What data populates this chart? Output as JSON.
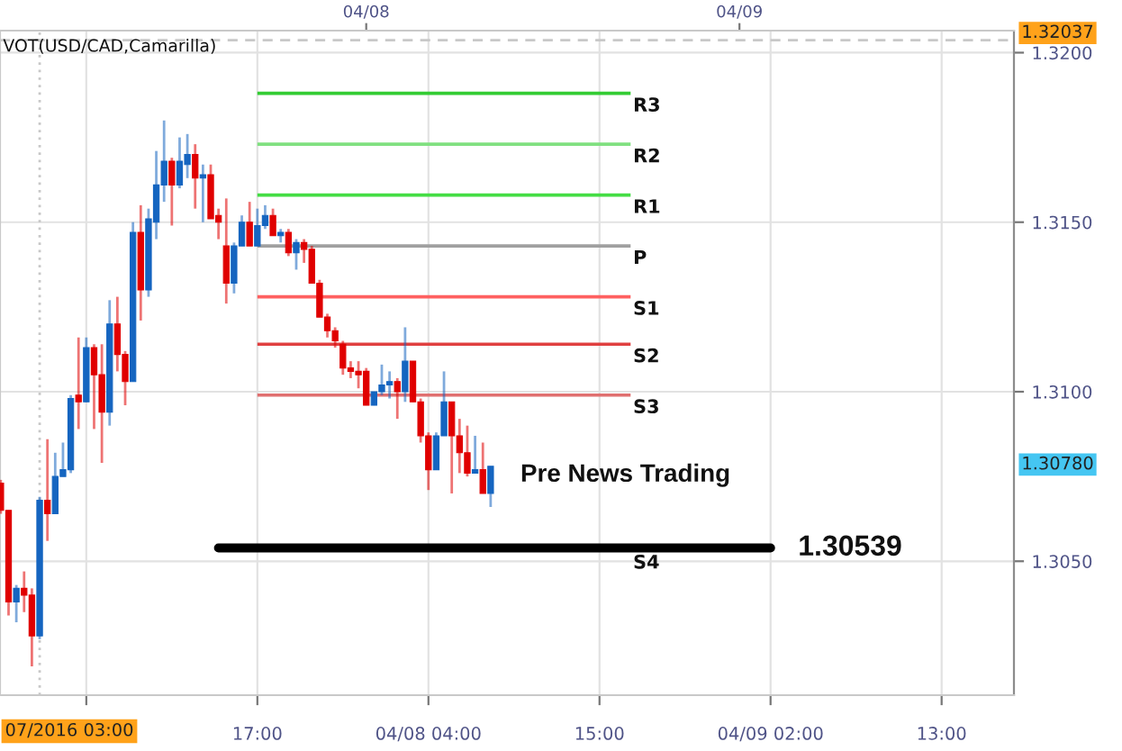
{
  "chart_data": {
    "type": "candlestick",
    "title": "VOT(USD/CAD,Camarilla)",
    "x": [
      "2016-04-07T00:30",
      "2016-04-07T01:00",
      "2016-04-07T01:30",
      "2016-04-07T02:00",
      "2016-04-07T02:30",
      "2016-04-07T03:00",
      "2016-04-07T03:30",
      "2016-04-07T04:00",
      "2016-04-07T04:30",
      "2016-04-07T05:00",
      "2016-04-07T05:30",
      "2016-04-07T06:00",
      "2016-04-07T06:30",
      "2016-04-07T07:00",
      "2016-04-07T07:30",
      "2016-04-07T08:00",
      "2016-04-07T08:30",
      "2016-04-07T09:00",
      "2016-04-07T09:30",
      "2016-04-07T10:00",
      "2016-04-07T10:30",
      "2016-04-07T11:00",
      "2016-04-07T11:30",
      "2016-04-07T12:00",
      "2016-04-07T12:30",
      "2016-04-07T13:00",
      "2016-04-07T13:30",
      "2016-04-07T14:00",
      "2016-04-07T14:30",
      "2016-04-07T15:00",
      "2016-04-07T15:30",
      "2016-04-07T16:00",
      "2016-04-07T16:30",
      "2016-04-07T17:00",
      "2016-04-07T17:30",
      "2016-04-07T18:00",
      "2016-04-07T18:30",
      "2016-04-07T19:00",
      "2016-04-07T19:30",
      "2016-04-07T20:00",
      "2016-04-07T20:30",
      "2016-04-07T21:00",
      "2016-04-07T21:30",
      "2016-04-07T22:00",
      "2016-04-07T22:30",
      "2016-04-07T23:00",
      "2016-04-07T23:30",
      "2016-04-08T00:00",
      "2016-04-08T00:30",
      "2016-04-08T01:00",
      "2016-04-08T01:30",
      "2016-04-08T02:00",
      "2016-04-08T02:30",
      "2016-04-08T03:00",
      "2016-04-08T03:30",
      "2016-04-08T04:00",
      "2016-04-08T04:30",
      "2016-04-08T05:00",
      "2016-04-08T05:30",
      "2016-04-08T06:00",
      "2016-04-08T06:30",
      "2016-04-08T07:00",
      "2016-04-08T07:30",
      "2016-04-08T08:00"
    ],
    "ohlc": [
      [
        1.3073,
        1.3074,
        1.3064,
        1.3065
      ],
      [
        1.3065,
        1.3065,
        1.3034,
        1.3038
      ],
      [
        1.3038,
        1.3043,
        1.3032,
        1.3042
      ],
      [
        1.3042,
        1.3047,
        1.3035,
        1.304
      ],
      [
        1.304,
        1.3042,
        1.3019,
        1.3028
      ],
      [
        1.3028,
        1.3069,
        1.3027,
        1.3068
      ],
      [
        1.3068,
        1.3086,
        1.3056,
        1.3064
      ],
      [
        1.3064,
        1.3082,
        1.3064,
        1.3075
      ],
      [
        1.3075,
        1.3085,
        1.3075,
        1.3077
      ],
      [
        1.3077,
        1.3099,
        1.3076,
        1.3098
      ],
      [
        1.3099,
        1.3116,
        1.3089,
        1.3097
      ],
      [
        1.3097,
        1.3116,
        1.3097,
        1.3113
      ],
      [
        1.3113,
        1.3114,
        1.3089,
        1.3105
      ],
      [
        1.3105,
        1.3114,
        1.3079,
        1.3094
      ],
      [
        1.3094,
        1.3127,
        1.309,
        1.312
      ],
      [
        1.312,
        1.3128,
        1.3106,
        1.3111
      ],
      [
        1.3111,
        1.3112,
        1.3096,
        1.3103
      ],
      [
        1.3103,
        1.315,
        1.3103,
        1.3147
      ],
      [
        1.3147,
        1.3155,
        1.3121,
        1.313
      ],
      [
        1.313,
        1.3154,
        1.3128,
        1.3151
      ],
      [
        1.315,
        1.3171,
        1.3145,
        1.3161
      ],
      [
        1.3161,
        1.318,
        1.3156,
        1.3168
      ],
      [
        1.3168,
        1.3169,
        1.3149,
        1.3161
      ],
      [
        1.3161,
        1.3175,
        1.316,
        1.3168
      ],
      [
        1.3167,
        1.3176,
        1.3163,
        1.317
      ],
      [
        1.317,
        1.3173,
        1.3154,
        1.3163
      ],
      [
        1.3163,
        1.3167,
        1.315,
        1.3164
      ],
      [
        1.3164,
        1.3167,
        1.3151,
        1.3151
      ],
      [
        1.3152,
        1.3154,
        1.3145,
        1.315
      ],
      [
        1.3143,
        1.3157,
        1.3126,
        1.3132
      ],
      [
        1.3132,
        1.3144,
        1.3129,
        1.3143
      ],
      [
        1.3143,
        1.3152,
        1.3143,
        1.315
      ],
      [
        1.315,
        1.3156,
        1.3143,
        1.3143
      ],
      [
        1.3143,
        1.3154,
        1.3143,
        1.3149
      ],
      [
        1.3149,
        1.3155,
        1.3148,
        1.3152
      ],
      [
        1.3152,
        1.3154,
        1.3146,
        1.3146
      ],
      [
        1.3146,
        1.3148,
        1.3144,
        1.3147
      ],
      [
        1.3147,
        1.3148,
        1.314,
        1.3141
      ],
      [
        1.3141,
        1.3145,
        1.3136,
        1.3144
      ],
      [
        1.3144,
        1.3145,
        1.3138,
        1.3142
      ],
      [
        1.3142,
        1.3143,
        1.3132,
        1.3132
      ],
      [
        1.3132,
        1.3133,
        1.3122,
        1.3122
      ],
      [
        1.3122,
        1.3123,
        1.3116,
        1.3118
      ],
      [
        1.3118,
        1.3119,
        1.3113,
        1.3115
      ],
      [
        1.3114,
        1.3115,
        1.3105,
        1.3107
      ],
      [
        1.3107,
        1.3109,
        1.3104,
        1.3106
      ],
      [
        1.3106,
        1.3109,
        1.3101,
        1.3105
      ],
      [
        1.3106,
        1.3107,
        1.3096,
        1.3096
      ],
      [
        1.3096,
        1.31,
        1.3096,
        1.31
      ],
      [
        1.31,
        1.3108,
        1.3099,
        1.3102
      ],
      [
        1.3102,
        1.3106,
        1.3098,
        1.3103
      ],
      [
        1.3103,
        1.3104,
        1.3092,
        1.31
      ],
      [
        1.31,
        1.3119,
        1.3097,
        1.3109
      ],
      [
        1.3109,
        1.3109,
        1.3097,
        1.3097
      ],
      [
        1.3097,
        1.3098,
        1.3085,
        1.3087
      ],
      [
        1.3087,
        1.3088,
        1.3071,
        1.3077
      ],
      [
        1.3077,
        1.3088,
        1.3077,
        1.3087
      ],
      [
        1.3087,
        1.3106,
        1.3087,
        1.3097
      ],
      [
        1.3097,
        1.3097,
        1.307,
        1.3087
      ],
      [
        1.3087,
        1.3092,
        1.3076,
        1.3082
      ],
      [
        1.3082,
        1.309,
        1.3075,
        1.3076
      ],
      [
        1.3076,
        1.3087,
        1.3076,
        1.3077
      ],
      [
        1.3077,
        1.3085,
        1.307,
        1.307
      ],
      [
        1.307,
        1.3078,
        1.3066,
        1.3078
      ]
    ],
    "colors": [
      "#e00000",
      "#e00000",
      "#1565c0",
      "#e00000",
      "#e00000",
      "#1565c0",
      "#e00000",
      "#1565c0",
      "#1565c0",
      "#1565c0",
      "#e00000",
      "#1565c0",
      "#e00000",
      "#e00000",
      "#1565c0",
      "#e00000",
      "#e00000",
      "#1565c0",
      "#e00000",
      "#1565c0",
      "#1565c0",
      "#1565c0",
      "#e00000",
      "#1565c0",
      "#1565c0",
      "#e00000",
      "#1565c0",
      "#e00000",
      "#e00000",
      "#e00000",
      "#1565c0",
      "#1565c0",
      "#e00000",
      "#1565c0",
      "#1565c0",
      "#e00000",
      "#1565c0",
      "#e00000",
      "#1565c0",
      "#e00000",
      "#e00000",
      "#e00000",
      "#e00000",
      "#e00000",
      "#e00000",
      "#e00000",
      "#e00000",
      "#e00000",
      "#1565c0",
      "#1565c0",
      "#1565c0",
      "#e00000",
      "#1565c0",
      "#e00000",
      "#e00000",
      "#e00000",
      "#1565c0",
      "#1565c0",
      "#e00000",
      "#e00000",
      "#e00000",
      "#1565c0",
      "#e00000",
      "#1565c0"
    ],
    "series": [
      {
        "type": "line",
        "name": "R3",
        "color": "#33cc33",
        "x": [
          "2016-04-07T17:00",
          "2016-04-08T17:00"
        ],
        "values": [
          1.3188,
          1.3188
        ]
      },
      {
        "type": "line",
        "name": "R2",
        "color": "#80e080",
        "x": [
          "2016-04-07T17:00",
          "2016-04-08T17:00"
        ],
        "values": [
          1.3173,
          1.3173
        ]
      },
      {
        "type": "line",
        "name": "R1",
        "color": "#44dd44",
        "x": [
          "2016-04-07T17:00",
          "2016-04-08T17:00"
        ],
        "values": [
          1.3158,
          1.3158
        ]
      },
      {
        "type": "line",
        "name": "P",
        "color": "#a0a0a0",
        "x": [
          "2016-04-07T17:00",
          "2016-04-08T17:00"
        ],
        "values": [
          1.3143,
          1.3143
        ]
      },
      {
        "type": "line",
        "name": "S1",
        "color": "#ff6060",
        "x": [
          "2016-04-07T17:00",
          "2016-04-08T17:00"
        ],
        "values": [
          1.3128,
          1.3128
        ]
      },
      {
        "type": "line",
        "name": "S2",
        "color": "#e04040",
        "x": [
          "2016-04-07T17:00",
          "2016-04-08T17:00"
        ],
        "values": [
          1.3114,
          1.3114
        ]
      },
      {
        "type": "line",
        "name": "S3",
        "color": "#e07070",
        "x": [
          "2016-04-07T17:00",
          "2016-04-08T17:00"
        ],
        "values": [
          1.3099,
          1.3099
        ]
      },
      {
        "type": "line",
        "color": "#000000",
        "x": [
          "2016-04-07T14:30",
          "2016-04-09T02:00"
        ],
        "values": [
          1.30539,
          1.30539
        ]
      }
    ],
    "xlim": [
      "2016-04-07T00:27",
      "2016-04-09T17:39"
    ],
    "xticks": [
      {
        "value": "2016-04-07T06:00",
        "label": null
      },
      {
        "value": "2016-04-07T17:00",
        "label": "17:00"
      },
      {
        "value": "2016-04-08T04:00",
        "label": "04/08 04:00"
      },
      {
        "value": "2016-04-08T15:00",
        "label": "15:00"
      },
      {
        "value": "2016-04-09T02:00",
        "label": "04/09 02:00"
      },
      {
        "value": "2016-04-09T13:00",
        "label": "13:00"
      }
    ],
    "x2lim": [
      "2016-04-07T00:27",
      "2016-04-09T17:39"
    ],
    "x2ticks": [
      {
        "value": "2016-04-08T00:00",
        "label": "04/08"
      },
      {
        "value": "2016-04-09T00:00",
        "label": "04/09"
      }
    ],
    "ylim": [
      1.30105,
      1.32065
    ],
    "yticks": [
      {
        "value": 1.32,
        "label": "1.3200"
      },
      {
        "value": 1.315,
        "label": "1.3150"
      },
      {
        "value": 1.31,
        "label": "1.3100"
      },
      {
        "value": 1.305,
        "label": "1.3050"
      }
    ],
    "grid": true,
    "ref_lines": [
      {
        "axis": "x",
        "value": "2016-04-07T03:00",
        "label": "07/2016 03:00",
        "color": "#c8c8c8",
        "line_style": "dotted"
      },
      {
        "axis": "y",
        "value": 1.32037,
        "label": "1.32037",
        "color": "#c8c8c8",
        "line_style": "dashed"
      }
    ],
    "annotations": [
      "Pre News Trading",
      {
        "text": "S4",
        "x": "2016-04-08T17:00",
        "y": 1.30539
      },
      {
        "text": "1.30539",
        "x": "2016-04-09T02:00",
        "y": 1.30539
      },
      "1.30780"
    ]
  }
}
